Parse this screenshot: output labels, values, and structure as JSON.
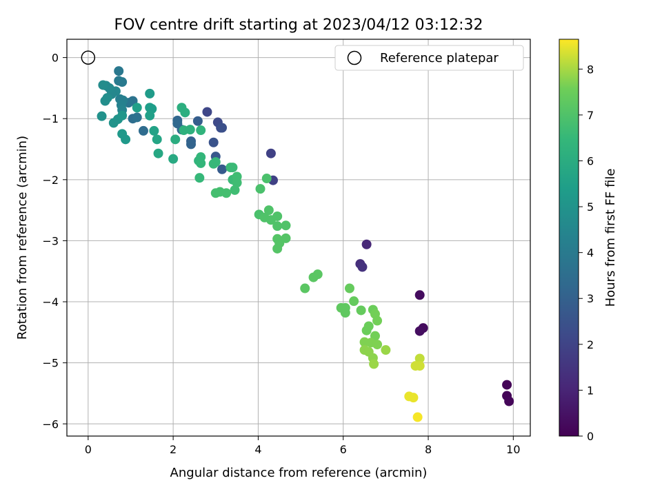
{
  "chart_data": {
    "type": "scatter",
    "title": "FOV centre drift starting at 2023/04/12 03:12:32",
    "xlabel": "Angular distance from reference (arcmin)",
    "ylabel": "Rotation from reference (arcmin)",
    "xlim": [
      -0.5,
      10.4
    ],
    "ylim": [
      -6.2,
      0.3
    ],
    "xticks": [
      0,
      2,
      4,
      6,
      8,
      10
    ],
    "yticks": [
      0,
      -1,
      -2,
      -3,
      -4,
      -5,
      -6
    ],
    "grid": true,
    "legend": {
      "placement": "upper right",
      "entries": [
        "Reference platepar"
      ]
    },
    "reference_point": {
      "x": 0,
      "y": 0,
      "label": "Reference platepar"
    },
    "colorbar": {
      "label": "Hours from first FF file",
      "range": [
        0,
        8.65
      ],
      "ticks": [
        0,
        1,
        2,
        3,
        4,
        5,
        6,
        7,
        8
      ],
      "colormap": "viridis"
    },
    "points": [
      {
        "x": 9.85,
        "y": -5.36,
        "c": 0.1
      },
      {
        "x": 9.85,
        "y": -5.54,
        "c": 0.1
      },
      {
        "x": 9.9,
        "y": -5.63,
        "c": 0.15
      },
      {
        "x": 7.8,
        "y": -3.89,
        "c": 0.3
      },
      {
        "x": 7.88,
        "y": -4.43,
        "c": 0.3
      },
      {
        "x": 7.8,
        "y": -4.48,
        "c": 0.35
      },
      {
        "x": 6.55,
        "y": -3.06,
        "c": 1.1
      },
      {
        "x": 6.4,
        "y": -3.38,
        "c": 1.3
      },
      {
        "x": 6.45,
        "y": -3.43,
        "c": 1.4
      },
      {
        "x": 4.3,
        "y": -1.57,
        "c": 1.9
      },
      {
        "x": 4.35,
        "y": -2.01,
        "c": 1.9
      },
      {
        "x": 2.8,
        "y": -0.89,
        "c": 2.1
      },
      {
        "x": 3.05,
        "y": -1.06,
        "c": 2.2
      },
      {
        "x": 3.12,
        "y": -1.15,
        "c": 2.3
      },
      {
        "x": 3.15,
        "y": -1.15,
        "c": 2.4
      },
      {
        "x": 2.95,
        "y": -1.39,
        "c": 2.5
      },
      {
        "x": 3.0,
        "y": -1.62,
        "c": 2.7
      },
      {
        "x": 3.15,
        "y": -1.83,
        "c": 2.8
      },
      {
        "x": 2.58,
        "y": -1.04,
        "c": 2.9
      },
      {
        "x": 2.42,
        "y": -1.37,
        "c": 3.0
      },
      {
        "x": 2.42,
        "y": -1.42,
        "c": 3.1
      },
      {
        "x": 2.1,
        "y": -1.03,
        "c": 3.2
      },
      {
        "x": 2.1,
        "y": -1.08,
        "c": 3.3
      },
      {
        "x": 2.2,
        "y": -1.18,
        "c": 3.3
      },
      {
        "x": 1.3,
        "y": -1.2,
        "c": 3.4
      },
      {
        "x": 1.05,
        "y": -1.0,
        "c": 3.5
      },
      {
        "x": 1.15,
        "y": -0.98,
        "c": 3.6
      },
      {
        "x": 1.05,
        "y": -0.71,
        "c": 3.7
      },
      {
        "x": 0.95,
        "y": -0.74,
        "c": 3.8
      },
      {
        "x": 0.72,
        "y": -0.22,
        "c": 3.9
      },
      {
        "x": 0.72,
        "y": -0.38,
        "c": 4.0
      },
      {
        "x": 0.8,
        "y": -0.4,
        "c": 4.0
      },
      {
        "x": 0.75,
        "y": -0.68,
        "c": 4.2
      },
      {
        "x": 0.82,
        "y": -0.7,
        "c": 4.2
      },
      {
        "x": 0.78,
        "y": -0.78,
        "c": 4.3
      },
      {
        "x": 0.8,
        "y": -0.86,
        "c": 4.4
      },
      {
        "x": 0.65,
        "y": -0.55,
        "c": 4.5
      },
      {
        "x": 0.55,
        "y": -0.6,
        "c": 4.5
      },
      {
        "x": 0.5,
        "y": -0.5,
        "c": 4.6
      },
      {
        "x": 0.42,
        "y": -0.46,
        "c": 4.6
      },
      {
        "x": 0.35,
        "y": -0.45,
        "c": 4.7
      },
      {
        "x": 0.45,
        "y": -0.66,
        "c": 4.8
      },
      {
        "x": 0.4,
        "y": -0.71,
        "c": 4.8
      },
      {
        "x": 0.32,
        "y": -0.96,
        "c": 4.9
      },
      {
        "x": 0.6,
        "y": -1.07,
        "c": 5.0
      },
      {
        "x": 0.7,
        "y": -1.01,
        "c": 5.0
      },
      {
        "x": 0.8,
        "y": -0.95,
        "c": 5.1
      },
      {
        "x": 0.8,
        "y": -1.25,
        "c": 5.2
      },
      {
        "x": 0.88,
        "y": -1.34,
        "c": 5.2
      },
      {
        "x": 1.45,
        "y": -0.59,
        "c": 5.3
      },
      {
        "x": 1.45,
        "y": -0.82,
        "c": 5.4
      },
      {
        "x": 1.5,
        "y": -0.84,
        "c": 5.4
      },
      {
        "x": 1.15,
        "y": -0.82,
        "c": 5.5
      },
      {
        "x": 1.45,
        "y": -0.95,
        "c": 5.5
      },
      {
        "x": 1.55,
        "y": -1.2,
        "c": 5.6
      },
      {
        "x": 1.62,
        "y": -1.34,
        "c": 5.7
      },
      {
        "x": 1.65,
        "y": -1.57,
        "c": 5.8
      },
      {
        "x": 2.0,
        "y": -1.66,
        "c": 5.9
      },
      {
        "x": 2.05,
        "y": -1.34,
        "c": 6.0
      },
      {
        "x": 2.2,
        "y": -0.82,
        "c": 6.1
      },
      {
        "x": 2.28,
        "y": -0.9,
        "c": 6.1
      },
      {
        "x": 2.25,
        "y": -1.19,
        "c": 6.2
      },
      {
        "x": 2.4,
        "y": -1.18,
        "c": 6.2
      },
      {
        "x": 2.65,
        "y": -1.19,
        "c": 6.3
      },
      {
        "x": 2.6,
        "y": -1.69,
        "c": 6.3
      },
      {
        "x": 2.65,
        "y": -1.63,
        "c": 6.4
      },
      {
        "x": 2.65,
        "y": -1.73,
        "c": 6.4
      },
      {
        "x": 2.62,
        "y": -1.97,
        "c": 6.5
      },
      {
        "x": 2.95,
        "y": -1.74,
        "c": 6.5
      },
      {
        "x": 3.0,
        "y": -1.71,
        "c": 6.5
      },
      {
        "x": 3.35,
        "y": -1.8,
        "c": 6.6
      },
      {
        "x": 3.4,
        "y": -1.8,
        "c": 6.6
      },
      {
        "x": 3.4,
        "y": -2.0,
        "c": 6.6
      },
      {
        "x": 3.5,
        "y": -1.95,
        "c": 6.7
      },
      {
        "x": 3.5,
        "y": -2.05,
        "c": 6.7
      },
      {
        "x": 3.45,
        "y": -2.17,
        "c": 6.7
      },
      {
        "x": 3.0,
        "y": -2.22,
        "c": 6.8
      },
      {
        "x": 3.1,
        "y": -2.2,
        "c": 6.8
      },
      {
        "x": 3.25,
        "y": -2.22,
        "c": 6.8
      },
      {
        "x": 4.05,
        "y": -2.15,
        "c": 6.9
      },
      {
        "x": 4.2,
        "y": -1.98,
        "c": 6.9
      },
      {
        "x": 4.02,
        "y": -2.57,
        "c": 6.9
      },
      {
        "x": 4.15,
        "y": -2.62,
        "c": 7.0
      },
      {
        "x": 4.25,
        "y": -2.5,
        "c": 7.0
      },
      {
        "x": 4.3,
        "y": -2.66,
        "c": 7.0
      },
      {
        "x": 4.45,
        "y": -2.6,
        "c": 7.0
      },
      {
        "x": 4.45,
        "y": -2.76,
        "c": 7.0
      },
      {
        "x": 4.65,
        "y": -2.75,
        "c": 7.0
      },
      {
        "x": 4.45,
        "y": -2.97,
        "c": 7.1
      },
      {
        "x": 4.5,
        "y": -3.04,
        "c": 7.1
      },
      {
        "x": 4.45,
        "y": -3.13,
        "c": 7.1
      },
      {
        "x": 4.65,
        "y": -2.96,
        "c": 7.1
      },
      {
        "x": 5.1,
        "y": -3.78,
        "c": 7.2
      },
      {
        "x": 5.3,
        "y": -3.6,
        "c": 7.2
      },
      {
        "x": 5.4,
        "y": -3.55,
        "c": 7.2
      },
      {
        "x": 5.95,
        "y": -4.1,
        "c": 7.3
      },
      {
        "x": 6.05,
        "y": -4.1,
        "c": 7.3
      },
      {
        "x": 6.05,
        "y": -4.18,
        "c": 7.3
      },
      {
        "x": 6.15,
        "y": -3.78,
        "c": 7.4
      },
      {
        "x": 6.25,
        "y": -3.99,
        "c": 7.4
      },
      {
        "x": 6.42,
        "y": -4.14,
        "c": 7.4
      },
      {
        "x": 6.55,
        "y": -4.47,
        "c": 7.5
      },
      {
        "x": 6.6,
        "y": -4.4,
        "c": 7.5
      },
      {
        "x": 6.7,
        "y": -4.13,
        "c": 7.5
      },
      {
        "x": 6.75,
        "y": -4.2,
        "c": 7.6
      },
      {
        "x": 6.8,
        "y": -4.31,
        "c": 7.6
      },
      {
        "x": 6.75,
        "y": -4.56,
        "c": 7.6
      },
      {
        "x": 6.5,
        "y": -4.66,
        "c": 7.7
      },
      {
        "x": 6.65,
        "y": -4.67,
        "c": 7.7
      },
      {
        "x": 6.8,
        "y": -4.7,
        "c": 7.7
      },
      {
        "x": 6.5,
        "y": -4.79,
        "c": 7.8
      },
      {
        "x": 6.6,
        "y": -4.82,
        "c": 7.8
      },
      {
        "x": 6.7,
        "y": -4.92,
        "c": 7.8
      },
      {
        "x": 6.72,
        "y": -5.02,
        "c": 7.9
      },
      {
        "x": 7.0,
        "y": -4.79,
        "c": 7.9
      },
      {
        "x": 7.8,
        "y": -4.93,
        "c": 8.2
      },
      {
        "x": 7.7,
        "y": -5.05,
        "c": 8.3
      },
      {
        "x": 7.8,
        "y": -5.05,
        "c": 8.3
      },
      {
        "x": 7.55,
        "y": -5.55,
        "c": 8.5
      },
      {
        "x": 7.65,
        "y": -5.57,
        "c": 8.5
      },
      {
        "x": 7.75,
        "y": -5.89,
        "c": 8.6
      }
    ]
  },
  "colors": {
    "axes": "#000000",
    "grid": "#b0b0b0",
    "legend_border": "#cccccc"
  }
}
